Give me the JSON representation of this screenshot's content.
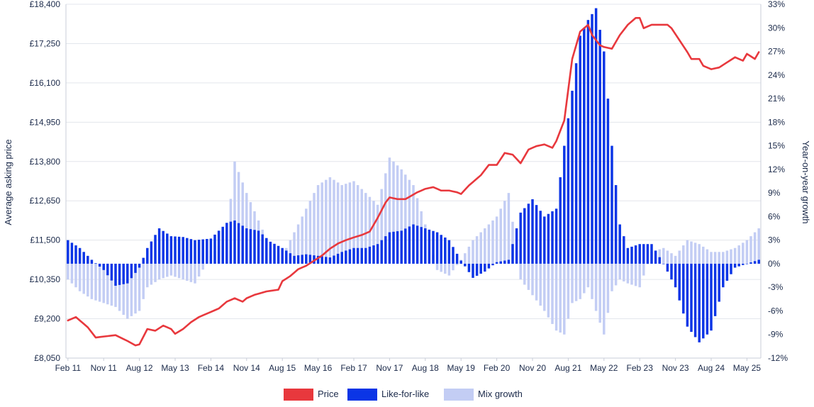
{
  "chart_data": {
    "type": "bar+line",
    "title": "",
    "y_left_label": "Average asking price",
    "y_right_label": "Year-on-year growth",
    "y_left_ticks": [
      "£8,050",
      "£9,200",
      "£10,350",
      "£11,500",
      "£12,650",
      "£13,800",
      "£14,950",
      "£16,100",
      "£17,250",
      "£18,400"
    ],
    "y_left_range": [
      8050,
      18400
    ],
    "y_right_ticks": [
      "-12%",
      "-9%",
      "-6%",
      "-3%",
      "0%",
      "3%",
      "6%",
      "9%",
      "12%",
      "15%",
      "18%",
      "21%",
      "24%",
      "27%",
      "30%",
      "33%"
    ],
    "y_right_range": [
      -12,
      33
    ],
    "x_ticks": [
      "Feb 11",
      "Nov 11",
      "Aug 12",
      "May 13",
      "Feb 14",
      "Nov 14",
      "Aug 15",
      "May 16",
      "Feb 17",
      "Nov 17",
      "Aug 18",
      "May 19",
      "Feb 20",
      "Nov 20",
      "Aug 21",
      "May 22",
      "Feb 23",
      "Nov 23",
      "Aug 24",
      "May 25"
    ],
    "x_range": [
      "Feb 11",
      "Aug 25"
    ],
    "colors": {
      "price": "#e8383d",
      "like_for_like": "#0b35e6",
      "mix_growth": "#c3cdf4"
    },
    "legend": [
      {
        "key": "price",
        "label": "Price"
      },
      {
        "key": "like_for_like",
        "label": "Like-for-like"
      },
      {
        "key": "mix_growth",
        "label": "Mix growth"
      }
    ],
    "legend_position": "bottom-center",
    "price_keypoints": [
      [
        "Feb 11",
        9150
      ],
      [
        "Apr 11",
        9250
      ],
      [
        "Jul 11",
        8950
      ],
      [
        "Sep 11",
        8650
      ],
      [
        "Nov 11",
        8680
      ],
      [
        "Feb 12",
        8720
      ],
      [
        "May 12",
        8550
      ],
      [
        "Jul 12",
        8420
      ],
      [
        "Aug 12",
        8450
      ],
      [
        "Oct 12",
        8900
      ],
      [
        "Dec 12",
        8850
      ],
      [
        "Feb 13",
        9000
      ],
      [
        "Apr 13",
        8900
      ],
      [
        "May 13",
        8760
      ],
      [
        "Jul 13",
        8900
      ],
      [
        "Sep 13",
        9100
      ],
      [
        "Nov 13",
        9250
      ],
      [
        "Feb 14",
        9400
      ],
      [
        "Apr 14",
        9500
      ],
      [
        "Jun 14",
        9700
      ],
      [
        "Aug 14",
        9800
      ],
      [
        "Oct 14",
        9700
      ],
      [
        "Nov 14",
        9800
      ],
      [
        "Jan 15",
        9900
      ],
      [
        "Apr 15",
        10000
      ],
      [
        "Jul 15",
        10050
      ],
      [
        "Aug 15",
        10300
      ],
      [
        "Oct 15",
        10450
      ],
      [
        "Dec 15",
        10650
      ],
      [
        "Feb 16",
        10750
      ],
      [
        "Apr 16",
        10900
      ],
      [
        "Jun 16",
        11050
      ],
      [
        "Aug 16",
        11250
      ],
      [
        "Oct 16",
        11400
      ],
      [
        "Dec 16",
        11500
      ],
      [
        "Feb 17",
        11580
      ],
      [
        "Apr 17",
        11650
      ],
      [
        "Jun 17",
        11750
      ],
      [
        "Aug 17",
        12150
      ],
      [
        "Oct 17",
        12600
      ],
      [
        "Nov 17",
        12750
      ],
      [
        "Jan 18",
        12700
      ],
      [
        "Mar 18",
        12700
      ],
      [
        "Jun 18",
        12900
      ],
      [
        "Aug 18",
        13000
      ],
      [
        "Oct 18",
        13050
      ],
      [
        "Dec 18",
        12950
      ],
      [
        "Feb 19",
        12950
      ],
      [
        "Apr 19",
        12900
      ],
      [
        "May 19",
        12850
      ],
      [
        "Jul 19",
        13100
      ],
      [
        "Oct 19",
        13400
      ],
      [
        "Dec 19",
        13700
      ],
      [
        "Feb 20",
        13700
      ],
      [
        "Apr 20",
        14050
      ],
      [
        "Jun 20",
        14000
      ],
      [
        "Aug 20",
        13750
      ],
      [
        "Oct 20",
        14150
      ],
      [
        "Dec 20",
        14250
      ],
      [
        "Feb 21",
        14300
      ],
      [
        "Apr 21",
        14200
      ],
      [
        "May 21",
        14400
      ],
      [
        "Jul 21",
        15000
      ],
      [
        "Aug 21",
        15900
      ],
      [
        "Sep 21",
        16800
      ],
      [
        "Nov 21",
        17600
      ],
      [
        "Jan 22",
        17800
      ],
      [
        "Feb 22",
        17500
      ],
      [
        "Apr 22",
        17200
      ],
      [
        "May 22",
        17150
      ],
      [
        "Jul 22",
        17100
      ],
      [
        "Sep 22",
        17500
      ],
      [
        "Nov 22",
        17800
      ],
      [
        "Jan 23",
        18000
      ],
      [
        "Feb 23",
        18000
      ],
      [
        "Mar 23",
        17700
      ],
      [
        "May 23",
        17800
      ],
      [
        "Jul 23",
        17800
      ],
      [
        "Sep 23",
        17800
      ],
      [
        "Oct 23",
        17700
      ],
      [
        "Dec 23",
        17350
      ],
      [
        "Feb 24",
        17000
      ],
      [
        "Mar 24",
        16800
      ],
      [
        "May 24",
        16800
      ],
      [
        "Jun 24",
        16600
      ],
      [
        "Aug 24",
        16500
      ],
      [
        "Oct 24",
        16550
      ],
      [
        "Dec 24",
        16700
      ],
      [
        "Feb 25",
        16850
      ],
      [
        "Apr 25",
        16750
      ],
      [
        "May 25",
        16950
      ],
      [
        "Jul 25",
        16800
      ],
      [
        "Aug 25",
        17000
      ]
    ],
    "like_for_like_keypoints": [
      [
        "Feb 11",
        3.0
      ],
      [
        "May 11",
        2.0
      ],
      [
        "Aug 11",
        0.5
      ],
      [
        "Nov 11",
        -0.8
      ],
      [
        "Feb 12",
        -2.8
      ],
      [
        "May 12",
        -2.5
      ],
      [
        "Aug 12",
        -0.5
      ],
      [
        "Oct 12",
        2.0
      ],
      [
        "Jan 13",
        4.5
      ],
      [
        "Apr 13",
        3.5
      ],
      [
        "Jul 13",
        3.4
      ],
      [
        "Oct 13",
        3.0
      ],
      [
        "Feb 14",
        3.2
      ],
      [
        "Jun 14",
        5.2
      ],
      [
        "Aug 14",
        5.5
      ],
      [
        "Nov 14",
        4.5
      ],
      [
        "Feb 15",
        4.2
      ],
      [
        "May 15",
        2.8
      ],
      [
        "Aug 15",
        2.0
      ],
      [
        "Nov 15",
        1.0
      ],
      [
        "Feb 16",
        1.2
      ],
      [
        "May 16",
        1.0
      ],
      [
        "Aug 16",
        0.8
      ],
      [
        "Nov 16",
        1.5
      ],
      [
        "Feb 17",
        2.0
      ],
      [
        "May 17",
        2.0
      ],
      [
        "Aug 17",
        2.5
      ],
      [
        "Nov 17",
        4.0
      ],
      [
        "Feb 18",
        4.2
      ],
      [
        "May 18",
        5.0
      ],
      [
        "Aug 18",
        4.5
      ],
      [
        "Nov 18",
        4.0
      ],
      [
        "Feb 19",
        3.0
      ],
      [
        "May 19",
        0.4
      ],
      [
        "Aug 19",
        -1.8
      ],
      [
        "Nov 19",
        -1.0
      ],
      [
        "Feb 20",
        0.2
      ],
      [
        "May 20",
        0.5
      ],
      [
        "Aug 20",
        6.5
      ],
      [
        "Nov 20",
        8.2
      ],
      [
        "Feb 21",
        6.0
      ],
      [
        "May 21",
        7.0
      ],
      [
        "Jul 21",
        15.0
      ],
      [
        "Sep 21",
        22.0
      ],
      [
        "Nov 21",
        29.0
      ],
      [
        "Jan 22",
        31.0
      ],
      [
        "Mar 22",
        32.5
      ],
      [
        "May 22",
        27.0
      ],
      [
        "Jul 22",
        15.0
      ],
      [
        "Sep 22",
        5.0
      ],
      [
        "Nov 22",
        2.0
      ],
      [
        "Feb 23",
        2.5
      ],
      [
        "May 23",
        2.5
      ],
      [
        "Aug 23",
        0.0
      ],
      [
        "Nov 23",
        -3.0
      ],
      [
        "Feb 24",
        -8.0
      ],
      [
        "May 24",
        -10.0
      ],
      [
        "Aug 24",
        -8.5
      ],
      [
        "Nov 24",
        -3.0
      ],
      [
        "Feb 25",
        -0.5
      ],
      [
        "May 25",
        0.0
      ],
      [
        "Aug 25",
        0.5
      ]
    ],
    "mix_growth_keypoints": [
      [
        "Feb 11",
        -2.0
      ],
      [
        "May 11",
        -3.5
      ],
      [
        "Aug 11",
        -4.5
      ],
      [
        "Nov 11",
        -5.0
      ],
      [
        "Feb 12",
        -5.5
      ],
      [
        "May 12",
        -7.0
      ],
      [
        "Aug 12",
        -6.0
      ],
      [
        "Oct 12",
        -3.0
      ],
      [
        "Jan 13",
        -2.0
      ],
      [
        "Apr 13",
        -1.5
      ],
      [
        "Jul 13",
        -2.0
      ],
      [
        "Oct 13",
        -2.5
      ],
      [
        "Feb 14",
        1.0
      ],
      [
        "Jun 14",
        3.5
      ],
      [
        "Aug 14",
        13.0
      ],
      [
        "Nov 14",
        9.0
      ],
      [
        "Feb 15",
        5.5
      ],
      [
        "May 15",
        2.0
      ],
      [
        "Aug 15",
        1.0
      ],
      [
        "Nov 15",
        4.0
      ],
      [
        "Feb 16",
        7.0
      ],
      [
        "May 16",
        10.0
      ],
      [
        "Aug 16",
        11.0
      ],
      [
        "Nov 16",
        10.0
      ],
      [
        "Feb 17",
        10.5
      ],
      [
        "May 17",
        9.0
      ],
      [
        "Aug 17",
        7.5
      ],
      [
        "Nov 17",
        13.5
      ],
      [
        "Feb 18",
        12.0
      ],
      [
        "May 18",
        10.0
      ],
      [
        "Aug 18",
        5.0
      ],
      [
        "Nov 18",
        -0.8
      ],
      [
        "Feb 19",
        -1.5
      ],
      [
        "May 19",
        0.5
      ],
      [
        "Aug 19",
        3.0
      ],
      [
        "Nov 19",
        4.5
      ],
      [
        "Feb 20",
        6.0
      ],
      [
        "May 20",
        9.0
      ],
      [
        "Aug 20",
        -2.0
      ],
      [
        "Nov 20",
        -4.0
      ],
      [
        "Feb 21",
        -6.0
      ],
      [
        "May 21",
        -8.5
      ],
      [
        "Jul 21",
        -9.0
      ],
      [
        "Sep 21",
        -5.0
      ],
      [
        "Nov 21",
        -4.5
      ],
      [
        "Jan 22",
        -3.0
      ],
      [
        "Mar 22",
        -6.0
      ],
      [
        "May 22",
        -9.0
      ],
      [
        "Jul 22",
        -3.5
      ],
      [
        "Sep 22",
        -2.0
      ],
      [
        "Nov 22",
        -2.5
      ],
      [
        "Feb 23",
        -3.0
      ],
      [
        "May 23",
        1.5
      ],
      [
        "Aug 23",
        2.0
      ],
      [
        "Nov 23",
        1.0
      ],
      [
        "Feb 24",
        3.0
      ],
      [
        "May 24",
        2.5
      ],
      [
        "Aug 24",
        1.5
      ],
      [
        "Nov 24",
        1.5
      ],
      [
        "Feb 25",
        2.0
      ],
      [
        "May 25",
        3.0
      ],
      [
        "Aug 25",
        4.5
      ]
    ]
  }
}
